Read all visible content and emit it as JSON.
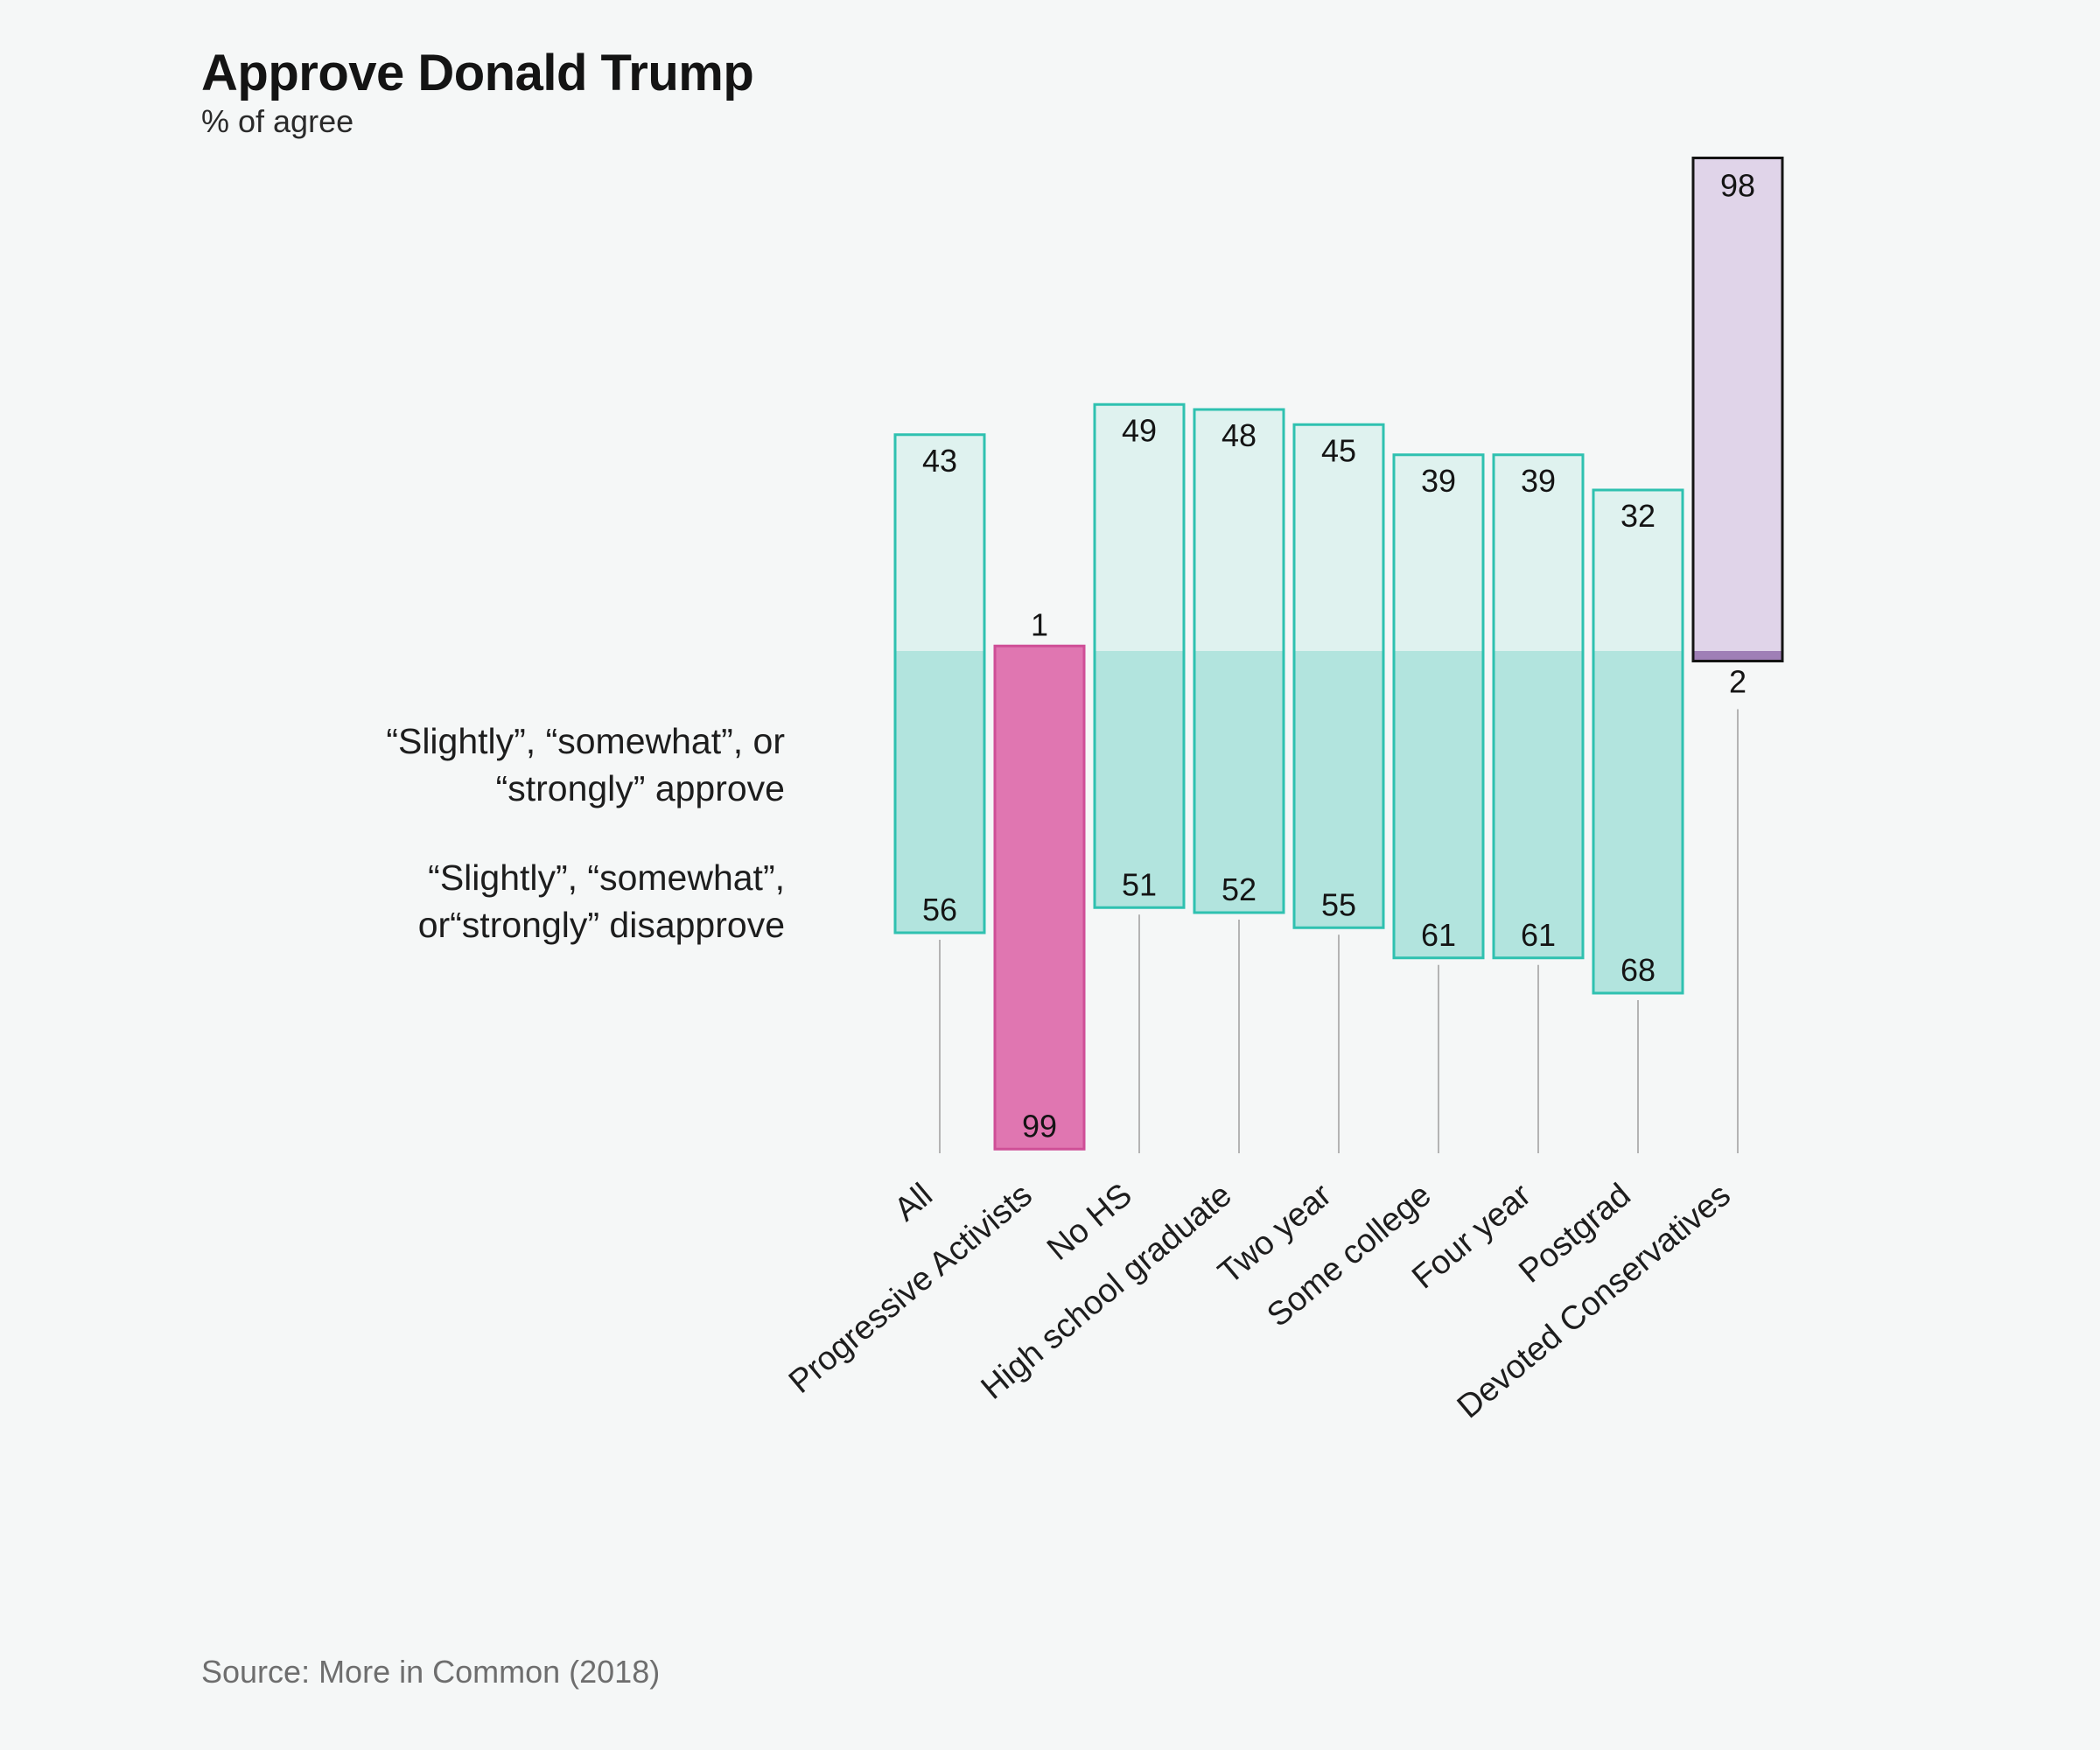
{
  "chart_data": {
    "type": "bar",
    "title": "Approve Donald Trump",
    "subtitle": "% of agree",
    "categories": [
      "All",
      "Progressive Activists",
      "No HS",
      "High school graduate",
      "Two year",
      "Some college",
      "Four year",
      "Postgrad",
      "Devoted Conservatives"
    ],
    "series": [
      {
        "name": "“Slightly”, “somewhat”, or “strongly” approve",
        "values": [
          43,
          1,
          49,
          48,
          45,
          39,
          39,
          32,
          98
        ]
      },
      {
        "name": "“Slightly”, “somewhat”, or“strongly” disapprove",
        "values": [
          56,
          99,
          51,
          52,
          55,
          61,
          61,
          68,
          2
        ]
      }
    ],
    "highlight": {
      "Progressive Activists": "#e076b1",
      "Devoted Conservatives": "#e0d4e9"
    },
    "legend": {
      "approve_line1": "“Slightly”, “somewhat”, or",
      "approve_line2": "“strongly” approve",
      "disapprove_line1": "“Slightly”, “somewhat”,",
      "disapprove_line2": "or“strongly” disapprove"
    },
    "source": "Source: More in Common (2018)",
    "ylim": [
      0,
      100
    ]
  },
  "colors": {
    "background": "#f5f7f7",
    "approve_fill": "#dff2ef",
    "disapprove_fill": "#b2e4de",
    "segment_stroke": "#2fc1b0",
    "progressive_fill": "#e076b1",
    "progressive_stroke": "#cf4f97",
    "conservative_fill": "#e0d4e9",
    "conservative_dark": "#9f7fb6",
    "conservative_stroke": "#141414",
    "stem": "#b4b4b4"
  }
}
